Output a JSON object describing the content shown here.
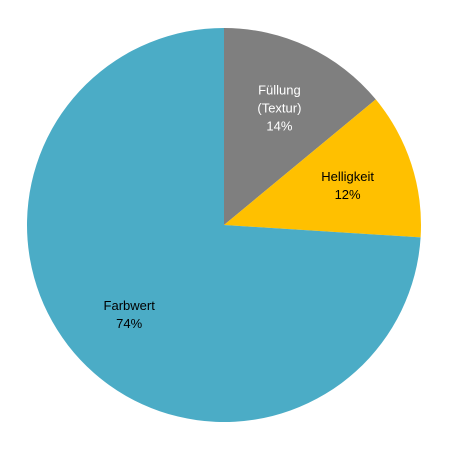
{
  "chart_data": {
    "type": "pie",
    "title": "",
    "slices": [
      {
        "name": "Füllung (Textur)",
        "label_lines": [
          "Füllung",
          "(Textur)",
          "14%"
        ],
        "value": 14,
        "color": "#7f7f7f",
        "label_color": "#ffffff"
      },
      {
        "name": "Helligkeit",
        "label_lines": [
          "Helligkeit",
          "12%"
        ],
        "value": 12,
        "color": "#ffc000",
        "label_color": "#000000"
      },
      {
        "name": "Farbwert",
        "label_lines": [
          "Farbwert",
          "74%"
        ],
        "value": 74,
        "color": "#4bacc6",
        "label_color": "#000000"
      }
    ],
    "start": "top",
    "direction": "clockwise",
    "legend": "none"
  }
}
